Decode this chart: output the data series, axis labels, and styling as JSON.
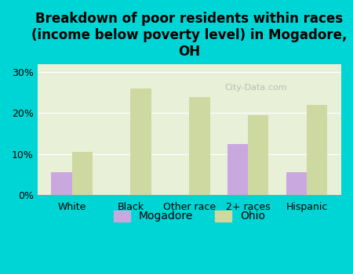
{
  "title": "Breakdown of poor residents within races\n(income below poverty level) in Mogadore,\nOH",
  "categories": [
    "White",
    "Black",
    "Other race",
    "2+ races",
    "Hispanic"
  ],
  "mogadore_values": [
    5.5,
    0,
    0,
    12.5,
    5.5
  ],
  "ohio_values": [
    10.5,
    26.0,
    24.0,
    19.5,
    22.0
  ],
  "mogadore_color": "#c9a8e0",
  "ohio_color": "#cdd9a0",
  "background_outer": "#00d5d5",
  "background_inner": "#e8f0d8",
  "ylim": [
    0,
    32
  ],
  "yticks": [
    0,
    10,
    20,
    30
  ],
  "ytick_labels": [
    "0%",
    "10%",
    "20%",
    "30%"
  ],
  "bar_width": 0.35,
  "legend_labels": [
    "Mogadore",
    "Ohio"
  ],
  "watermark": "City-Data.com",
  "title_fontsize": 12,
  "tick_fontsize": 9,
  "legend_fontsize": 10
}
